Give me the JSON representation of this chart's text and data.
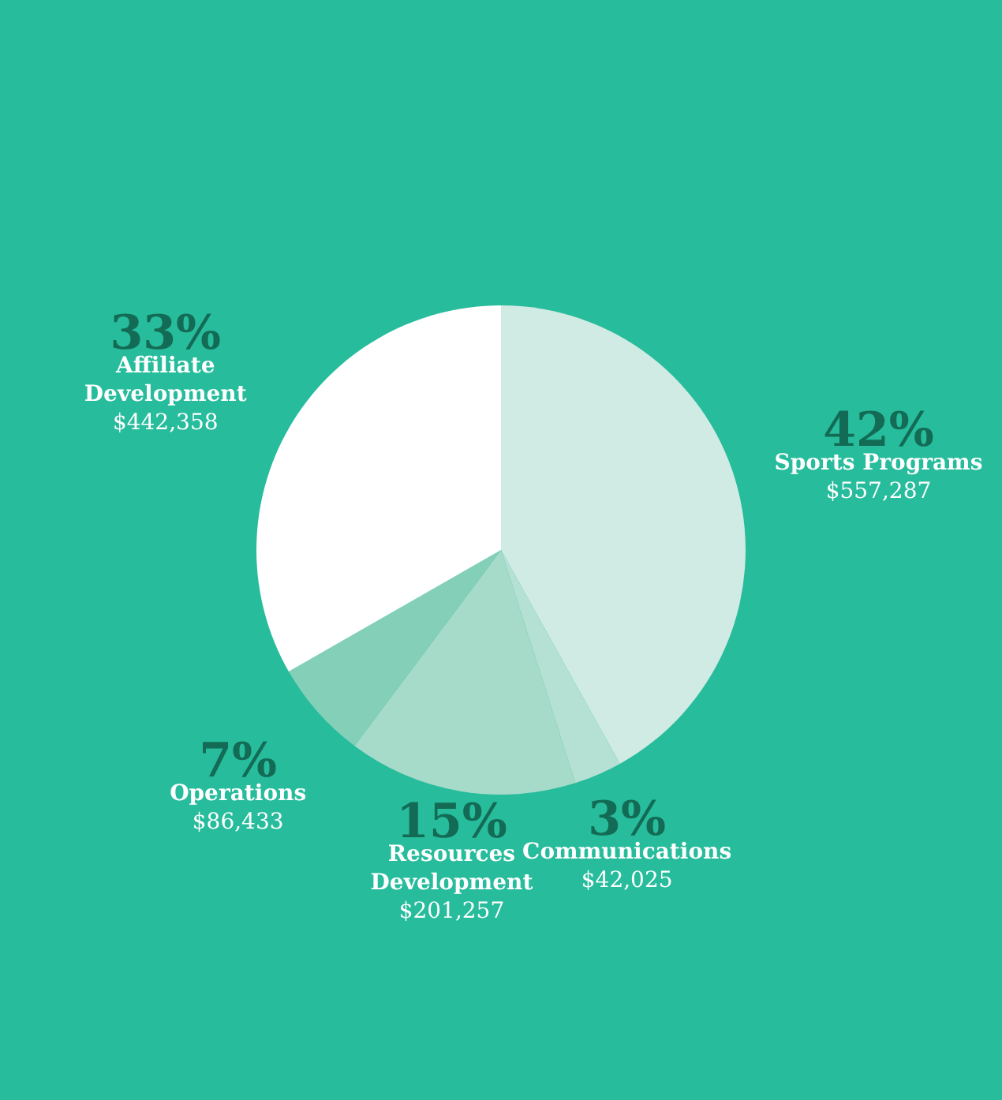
{
  "chart_data": {
    "type": "pie",
    "categories": [
      "Sports Programs",
      "Communications",
      "Resources Development",
      "Operations",
      "Affiliate Development"
    ],
    "values": [
      557287,
      42025,
      201257,
      86433,
      442358
    ],
    "colors": [
      "#d0ebe3",
      "#b5e1d4",
      "#a6dac9",
      "#84cfb8",
      "#ffffff"
    ],
    "value_labels": [
      "$557,287",
      "$42,025",
      "$201,257",
      "$86,433",
      "$442,358"
    ],
    "annotations": [
      "42%",
      "3%",
      "15%",
      "7%",
      "33%"
    ]
  }
}
